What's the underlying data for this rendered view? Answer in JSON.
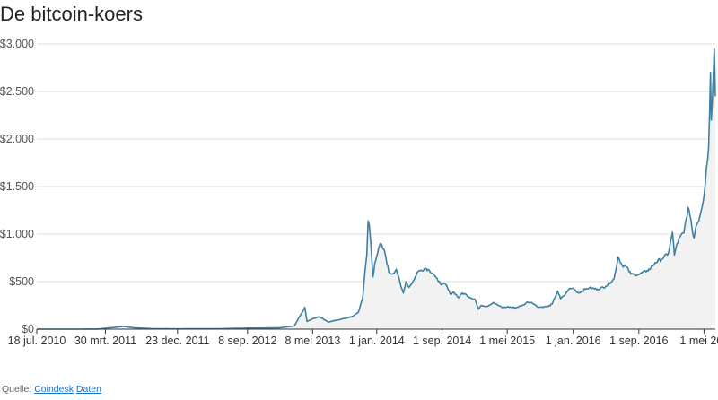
{
  "title": "De bitcoin-koers",
  "source": {
    "label": "Quelle:",
    "link1": "Coindesk",
    "link2": "Daten"
  },
  "colors": {
    "line": "#3f7fa0",
    "area": "#f2f2f2",
    "grid": "#dddddd",
    "axis": "#333333"
  },
  "chart_data": {
    "type": "area",
    "title": "De bitcoin-koers",
    "xlabel": "",
    "ylabel": "",
    "ylim": [
      0,
      3000
    ],
    "xlim": [
      "2010-07-18",
      "2017-06-12"
    ],
    "grid": true,
    "yticks": [
      {
        "value": 0,
        "label": "$0"
      },
      {
        "value": 500,
        "label": "$500"
      },
      {
        "value": 1000,
        "label": "$1.000"
      },
      {
        "value": 1500,
        "label": "$1.500"
      },
      {
        "value": 2000,
        "label": "$2.000"
      },
      {
        "value": 2500,
        "label": "$2.500"
      },
      {
        "value": 3000,
        "label": "$3.000"
      }
    ],
    "xticks": [
      {
        "date": "2010-07-18",
        "label": "18 jul. 2010"
      },
      {
        "date": "2011-03-30",
        "label": "30 mrt. 2011"
      },
      {
        "date": "2011-12-23",
        "label": "23 dec. 2011"
      },
      {
        "date": "2012-09-08",
        "label": "8 sep. 2012"
      },
      {
        "date": "2013-05-08",
        "label": "8 mei 2013"
      },
      {
        "date": "2014-01-01",
        "label": "1 jan. 2014"
      },
      {
        "date": "2014-09-01",
        "label": "1 sep. 2014"
      },
      {
        "date": "2015-05-01",
        "label": "1 mei 2015"
      },
      {
        "date": "2016-01-01",
        "label": "1 jan. 2016"
      },
      {
        "date": "2016-09-01",
        "label": "1 sep. 2016"
      },
      {
        "date": "2017-05-01",
        "label": "1 mei 20"
      }
    ],
    "series": [
      {
        "x": [
          "2010-07-18",
          "2010-12-01",
          "2011-03-01",
          "2011-06-08",
          "2011-07-15",
          "2011-10-01",
          "2011-12-23",
          "2012-06-01",
          "2012-09-08",
          "2013-01-01",
          "2013-03-01",
          "2013-04-09",
          "2013-04-17",
          "2013-05-08",
          "2013-06-01",
          "2013-07-05",
          "2013-08-15",
          "2013-10-01",
          "2013-10-25",
          "2013-11-10",
          "2013-11-18",
          "2013-11-25",
          "2013-11-30",
          "2013-12-04",
          "2013-12-10",
          "2013-12-18",
          "2013-12-25",
          "2014-01-01",
          "2014-01-15",
          "2014-02-01",
          "2014-02-15",
          "2014-02-28",
          "2014-03-15",
          "2014-04-01",
          "2014-04-10",
          "2014-04-20",
          "2014-05-01",
          "2014-05-20",
          "2014-06-01",
          "2014-06-15",
          "2014-07-01",
          "2014-07-15",
          "2014-08-01",
          "2014-08-18",
          "2014-09-01",
          "2014-09-15",
          "2014-10-01",
          "2014-10-15",
          "2014-11-01",
          "2014-11-15",
          "2014-12-01",
          "2014-12-15",
          "2015-01-01",
          "2015-01-14",
          "2015-01-25",
          "2015-02-15",
          "2015-03-10",
          "2015-04-01",
          "2015-04-15",
          "2015-05-01",
          "2015-06-01",
          "2015-07-01",
          "2015-07-15",
          "2015-08-01",
          "2015-08-25",
          "2015-09-15",
          "2015-10-01",
          "2015-10-15",
          "2015-11-04",
          "2015-11-15",
          "2015-12-01",
          "2015-12-15",
          "2016-01-01",
          "2016-01-20",
          "2016-02-15",
          "2016-03-01",
          "2016-04-01",
          "2016-05-01",
          "2016-06-01",
          "2016-06-16",
          "2016-07-01",
          "2016-07-15",
          "2016-08-02",
          "2016-08-15",
          "2016-09-01",
          "2016-10-01",
          "2016-10-15",
          "2016-11-01",
          "2016-12-01",
          "2016-12-20",
          "2017-01-04",
          "2017-01-11",
          "2017-01-20",
          "2017-02-01",
          "2017-02-15",
          "2017-03-03",
          "2017-03-10",
          "2017-03-18",
          "2017-03-25",
          "2017-04-01",
          "2017-04-15",
          "2017-05-01",
          "2017-05-10",
          "2017-05-18",
          "2017-05-25",
          "2017-05-28",
          "2017-06-01",
          "2017-06-05",
          "2017-06-08",
          "2017-06-10",
          "2017-06-12"
        ],
        "y": [
          0.1,
          0.2,
          0.9,
          29,
          14,
          4,
          3,
          5,
          11,
          13,
          35,
          230,
          80,
          110,
          130,
          75,
          100,
          130,
          180,
          330,
          600,
          780,
          1140,
          1100,
          900,
          550,
          700,
          770,
          900,
          800,
          600,
          580,
          630,
          450,
          380,
          500,
          440,
          520,
          600,
          620,
          640,
          620,
          580,
          500,
          470,
          470,
          370,
          390,
          330,
          380,
          360,
          330,
          315,
          210,
          250,
          240,
          280,
          245,
          225,
          235,
          225,
          255,
          285,
          280,
          230,
          235,
          240,
          265,
          400,
          320,
          360,
          420,
          430,
          380,
          420,
          435,
          420,
          450,
          530,
          760,
          670,
          660,
          580,
          575,
          575,
          615,
          640,
          700,
          750,
          800,
          1020,
          780,
          895,
          970,
          1010,
          1280,
          1190,
          1050,
          960,
          1080,
          1180,
          1400,
          1700,
          1900,
          2700,
          2200,
          2400,
          2700,
          2950,
          2750,
          2450
        ]
      }
    ]
  }
}
